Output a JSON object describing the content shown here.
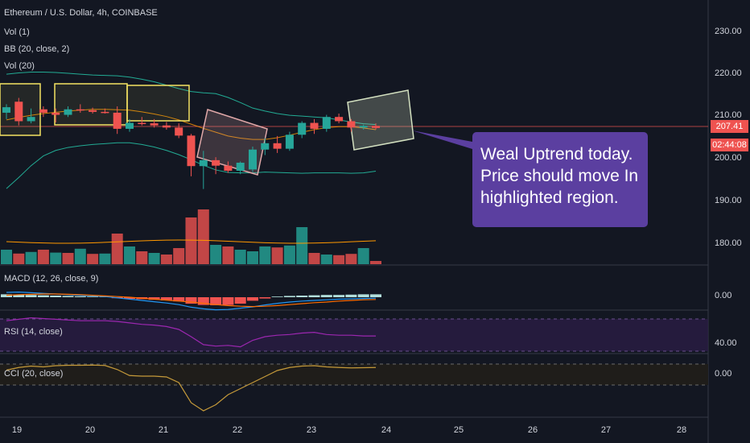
{
  "header": {
    "symbol_title": "Ethereum / U.S. Dollar, 4h, COINBASE",
    "indicator_vol1": "Vol (1)",
    "indicator_bb": "BB (20, close, 2)",
    "indicator_vol20": "Vol (20)"
  },
  "price_axis": {
    "labels": [
      "230.00",
      "220.00",
      "210.00",
      "200.00",
      "190.00",
      "180.00"
    ],
    "current_price": "207.41",
    "countdown": "02:44:08"
  },
  "panes": {
    "macd": {
      "title": "MACD (12, 26, close, 9)",
      "axis_label": "0.00"
    },
    "rsi": {
      "title": "RSI (14, close)",
      "axis_label": "40.00"
    },
    "cci": {
      "title": "CCI (20, close)",
      "axis_label": "0.00"
    }
  },
  "time_axis": {
    "labels": [
      "19",
      "20",
      "21",
      "22",
      "23",
      "24",
      "25",
      "26",
      "27",
      "28"
    ]
  },
  "annotation": {
    "line1": "Weal Uptrend today.",
    "line2": "Price should move In",
    "line3": "highlighted region."
  },
  "colors": {
    "background": "#131722",
    "bull": "#26a69a",
    "bear": "#ef5350",
    "bb_band": "#22ab94",
    "bb_basis": "#ff9800",
    "rsi_line": "#9c27b0",
    "cci_line": "#c59a3a",
    "macd_line": "#2196f3",
    "signal_line": "#ff6d00",
    "callout_bg": "#5b3fa0",
    "highlight_box": "#f5e462"
  },
  "chart_data": {
    "type": "candlestick",
    "symbol": "Ethereum / U.S. Dollar",
    "interval": "4h",
    "exchange": "COINBASE",
    "y_range": [
      173,
      234
    ],
    "candles": [
      {
        "o": 211.0,
        "h": 213.0,
        "l": 209.5,
        "c": 212.3
      },
      {
        "o": 213.6,
        "h": 214.5,
        "l": 208.0,
        "c": 209.0
      },
      {
        "o": 209.0,
        "h": 212.0,
        "l": 208.5,
        "c": 210.0
      },
      {
        "o": 211.8,
        "h": 212.5,
        "l": 210.0,
        "c": 211.0
      },
      {
        "o": 211.0,
        "h": 212.0,
        "l": 208.7,
        "c": 210.5
      },
      {
        "o": 210.5,
        "h": 212.5,
        "l": 210.0,
        "c": 211.8
      },
      {
        "o": 211.8,
        "h": 213.0,
        "l": 211.0,
        "c": 211.6
      },
      {
        "o": 211.6,
        "h": 212.2,
        "l": 210.8,
        "c": 211.2
      },
      {
        "o": 211.2,
        "h": 212.0,
        "l": 210.8,
        "c": 211.0
      },
      {
        "o": 211.0,
        "h": 212.5,
        "l": 206.0,
        "c": 207.2
      },
      {
        "o": 207.2,
        "h": 209.5,
        "l": 206.5,
        "c": 208.6
      },
      {
        "o": 208.6,
        "h": 210.0,
        "l": 208.0,
        "c": 208.5
      },
      {
        "o": 208.5,
        "h": 209.5,
        "l": 207.5,
        "c": 208.0
      },
      {
        "o": 208.0,
        "h": 208.8,
        "l": 207.0,
        "c": 207.5
      },
      {
        "o": 207.5,
        "h": 208.5,
        "l": 205.0,
        "c": 205.6
      },
      {
        "o": 205.6,
        "h": 206.0,
        "l": 196.0,
        "c": 198.4
      },
      {
        "o": 198.4,
        "h": 202.0,
        "l": 193.0,
        "c": 199.8
      },
      {
        "o": 199.8,
        "h": 200.5,
        "l": 196.5,
        "c": 198.5
      },
      {
        "o": 198.5,
        "h": 199.5,
        "l": 196.8,
        "c": 197.3
      },
      {
        "o": 197.3,
        "h": 199.5,
        "l": 196.5,
        "c": 199.2
      },
      {
        "o": 197.6,
        "h": 203.0,
        "l": 197.0,
        "c": 202.3
      },
      {
        "o": 202.3,
        "h": 205.0,
        "l": 201.0,
        "c": 203.8
      },
      {
        "o": 203.8,
        "h": 205.5,
        "l": 201.5,
        "c": 202.5
      },
      {
        "o": 202.5,
        "h": 206.5,
        "l": 202.0,
        "c": 205.8
      },
      {
        "o": 205.8,
        "h": 209.0,
        "l": 205.0,
        "c": 208.6
      },
      {
        "o": 208.6,
        "h": 209.5,
        "l": 206.0,
        "c": 207.2
      },
      {
        "o": 207.2,
        "h": 210.5,
        "l": 206.5,
        "c": 210.0
      },
      {
        "o": 210.0,
        "h": 210.8,
        "l": 208.5,
        "c": 209.0
      },
      {
        "o": 209.0,
        "h": 209.5,
        "l": 206.5,
        "c": 207.5
      },
      {
        "o": 207.5,
        "h": 208.2,
        "l": 207.0,
        "c": 207.9
      },
      {
        "o": 207.9,
        "h": 208.5,
        "l": 207.0,
        "c": 207.4
      }
    ],
    "volume": [
      {
        "v": 0.45,
        "up": true
      },
      {
        "v": 0.33,
        "up": false
      },
      {
        "v": 0.38,
        "up": true
      },
      {
        "v": 0.45,
        "up": false
      },
      {
        "v": 0.36,
        "up": true
      },
      {
        "v": 0.35,
        "up": false
      },
      {
        "v": 0.48,
        "up": true
      },
      {
        "v": 0.32,
        "up": false
      },
      {
        "v": 0.33,
        "up": true
      },
      {
        "v": 0.95,
        "up": false
      },
      {
        "v": 0.55,
        "up": true
      },
      {
        "v": 0.4,
        "up": false
      },
      {
        "v": 0.35,
        "up": true
      },
      {
        "v": 0.3,
        "up": false
      },
      {
        "v": 0.5,
        "up": false
      },
      {
        "v": 1.45,
        "up": false
      },
      {
        "v": 1.7,
        "up": false
      },
      {
        "v": 0.6,
        "up": true
      },
      {
        "v": 0.55,
        "up": false
      },
      {
        "v": 0.45,
        "up": true
      },
      {
        "v": 0.4,
        "up": true
      },
      {
        "v": 0.55,
        "up": true
      },
      {
        "v": 0.52,
        "up": false
      },
      {
        "v": 0.58,
        "up": true
      },
      {
        "v": 1.15,
        "up": true
      },
      {
        "v": 0.35,
        "up": false
      },
      {
        "v": 0.3,
        "up": true
      },
      {
        "v": 0.28,
        "up": false
      },
      {
        "v": 0.32,
        "up": false
      },
      {
        "v": 0.5,
        "up": true
      },
      {
        "v": 0.1,
        "up": false
      }
    ],
    "bb_upper": [
      220.1,
      220.4,
      220.6,
      220.6,
      220.5,
      220.3,
      220.1,
      219.9,
      219.8,
      219.7,
      219.4,
      218.9,
      218.3,
      217.5,
      216.7,
      216.0,
      215.7,
      215.5,
      214.6,
      213.4,
      212.1,
      211.4,
      210.8,
      210.4,
      210.2,
      210.0,
      209.8,
      209.3,
      208.8,
      208.4,
      208.2
    ],
    "bb_basis": [
      209.3,
      209.9,
      210.4,
      210.8,
      211.1,
      211.4,
      211.6,
      211.8,
      211.8,
      211.7,
      211.6,
      211.2,
      210.7,
      210.1,
      209.3,
      208.3,
      207.3,
      206.4,
      205.5,
      205.0,
      204.7,
      204.7,
      205.1,
      205.7,
      206.4,
      207.0,
      207.5,
      207.7,
      207.7,
      207.4,
      207.0
    ],
    "bb_lower": [
      193.1,
      195.7,
      198.5,
      200.8,
      202.1,
      202.8,
      203.2,
      203.5,
      203.7,
      203.9,
      203.9,
      203.5,
      202.9,
      202.1,
      201.1,
      199.9,
      198.6,
      197.5,
      196.9,
      196.8,
      196.8,
      197.0,
      196.9,
      196.8,
      196.7,
      196.8,
      196.8,
      196.8,
      196.7,
      196.8,
      197.2
    ],
    "annotations": [
      {
        "kind": "rectangle",
        "label": "consolidation box 1"
      },
      {
        "kind": "rectangle",
        "label": "consolidation box 2"
      },
      {
        "kind": "rectangle",
        "label": "consolidation box 3"
      },
      {
        "kind": "rotated-rectangle",
        "label": "drop region"
      },
      {
        "kind": "rotated-rectangle",
        "label": "projected region"
      }
    ],
    "rsi": [
      72,
      74,
      76,
      75,
      74,
      73,
      72,
      72,
      72,
      71,
      69,
      67,
      66,
      64,
      60,
      50,
      39,
      37,
      38,
      36,
      45,
      50,
      52,
      53,
      55,
      56,
      53,
      52,
      52,
      51,
      51
    ],
    "cci": [
      22,
      35,
      42,
      38,
      44,
      46,
      46,
      47,
      45,
      25,
      -5,
      -8,
      -8,
      -12,
      -40,
      -140,
      -180,
      -150,
      -100,
      -70,
      -40,
      -10,
      20,
      35,
      42,
      44,
      38,
      35,
      33,
      34,
      35
    ],
    "macd_hist": [
      0.9,
      0.8,
      0.7,
      0.6,
      0.5,
      0.4,
      0.3,
      0.2,
      0.1,
      -0.3,
      -0.5,
      -0.6,
      -0.8,
      -1.0,
      -1.3,
      -2.0,
      -2.4,
      -2.5,
      -2.4,
      -2.0,
      -1.1,
      -0.4,
      0.2,
      0.4,
      0.5,
      0.6,
      0.7,
      0.7,
      0.8,
      0.9,
      0.9
    ],
    "macd_line": [
      1.5,
      1.6,
      1.4,
      1.2,
      1.0,
      0.8,
      0.6,
      0.4,
      0.2,
      -0.2,
      -0.6,
      -1.0,
      -1.4,
      -1.8,
      -2.3,
      -3.1,
      -3.6,
      -3.9,
      -3.8,
      -3.4,
      -3.0,
      -2.4,
      -1.9,
      -1.5,
      -1.2,
      -1.0,
      -0.8,
      -0.6,
      -0.5,
      -0.4,
      -0.3
    ],
    "signal_line": [
      0.6,
      0.8,
      0.9,
      1.0,
      1.0,
      0.9,
      0.8,
      0.6,
      0.4,
      0.2,
      0.0,
      -0.3,
      -0.6,
      -0.9,
      -1.2,
      -1.5,
      -1.9,
      -2.3,
      -2.6,
      -2.8,
      -2.9,
      -2.8,
      -2.6,
      -2.3,
      -2.0,
      -1.7,
      -1.5,
      -1.2,
      -1.0,
      -0.8,
      -0.7
    ]
  }
}
